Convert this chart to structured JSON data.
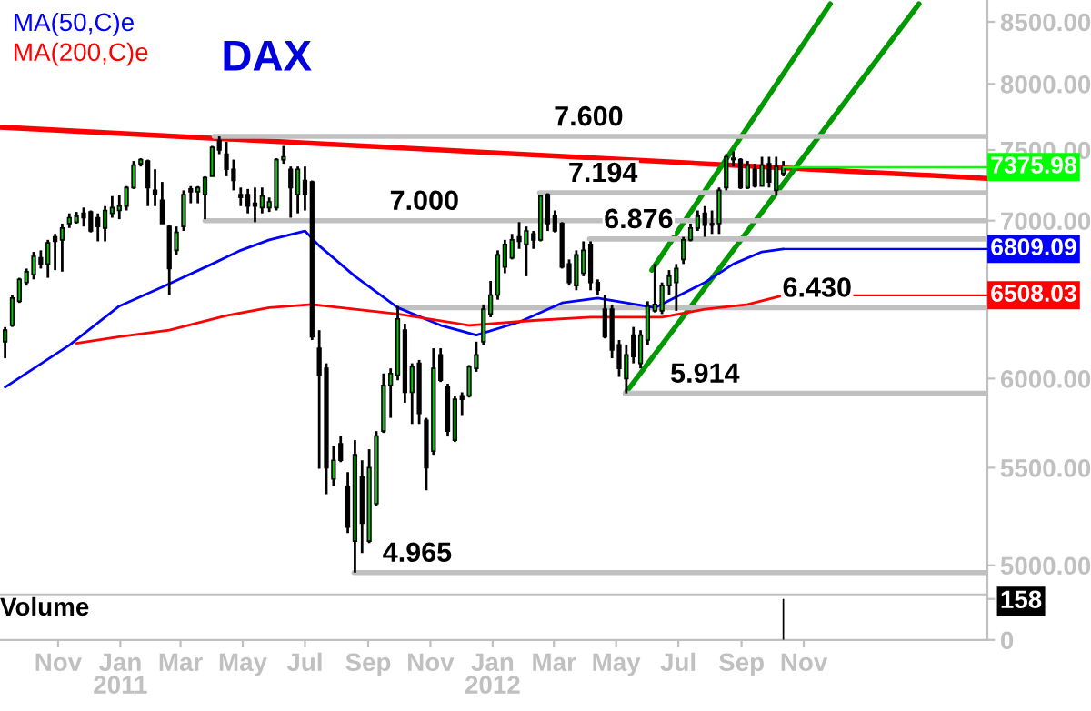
{
  "chart_data": [
    {
      "type": "candlestick",
      "title": "DAX",
      "log": true,
      "legend": "top left",
      "tick_labels": "y",
      "xlim": [
        "2010-09-05",
        "2013-04-30"
      ],
      "ylim": [
        4860,
        8683
      ],
      "yticks": [
        {
          "value": 5000,
          "label": "5000.00"
        },
        {
          "value": 5500,
          "label": "5500.00"
        },
        {
          "value": 6000,
          "label": "6000.00"
        },
        {
          "value": 7000,
          "label": "7000.00"
        },
        {
          "value": 7500,
          "label": "7500.00"
        },
        {
          "value": 8000,
          "label": "8000.00"
        },
        {
          "value": 8500,
          "label": "8500.00"
        }
      ],
      "x": [
        "2010-09-10",
        "2010-09-17",
        "2010-09-24",
        "2010-10-01",
        "2010-10-08",
        "2010-10-15",
        "2010-10-22",
        "2010-10-29",
        "2010-11-05",
        "2010-11-12",
        "2010-11-19",
        "2010-11-26",
        "2010-12-03",
        "2010-12-10",
        "2010-12-17",
        "2010-12-24",
        "2010-12-31",
        "2011-01-07",
        "2011-01-14",
        "2011-01-21",
        "2011-01-28",
        "2011-02-04",
        "2011-02-11",
        "2011-02-18",
        "2011-02-25",
        "2011-03-04",
        "2011-03-11",
        "2011-03-18",
        "2011-03-25",
        "2011-04-01",
        "2011-04-08",
        "2011-04-15",
        "2011-04-22",
        "2011-04-29",
        "2011-05-06",
        "2011-05-13",
        "2011-05-20",
        "2011-05-27",
        "2011-06-03",
        "2011-06-10",
        "2011-06-17",
        "2011-06-24",
        "2011-07-01",
        "2011-07-08",
        "2011-07-15",
        "2011-07-22",
        "2011-07-29",
        "2011-08-05",
        "2011-08-12",
        "2011-08-19",
        "2011-08-26",
        "2011-09-02",
        "2011-09-09",
        "2011-09-16",
        "2011-09-23",
        "2011-09-30",
        "2011-10-07",
        "2011-10-14",
        "2011-10-21",
        "2011-10-28",
        "2011-11-04",
        "2011-11-11",
        "2011-11-18",
        "2011-11-25",
        "2011-12-02",
        "2011-12-09",
        "2011-12-16",
        "2011-12-23",
        "2011-12-30",
        "2012-01-06",
        "2012-01-13",
        "2012-01-20",
        "2012-01-27",
        "2012-02-03",
        "2012-02-10",
        "2012-02-17",
        "2012-02-24",
        "2012-03-02",
        "2012-03-09",
        "2012-03-16",
        "2012-03-23",
        "2012-03-30",
        "2012-04-06",
        "2012-04-13",
        "2012-04-20",
        "2012-04-27",
        "2012-05-04",
        "2012-05-11",
        "2012-05-18",
        "2012-05-25",
        "2012-06-01",
        "2012-06-08",
        "2012-06-15",
        "2012-06-22",
        "2012-06-29",
        "2012-07-06",
        "2012-07-13",
        "2012-07-20",
        "2012-07-27",
        "2012-08-03",
        "2012-08-10",
        "2012-08-17",
        "2012-08-24",
        "2012-08-31",
        "2012-09-07",
        "2012-09-14",
        "2012-09-21",
        "2012-09-28",
        "2012-10-05",
        "2012-10-12"
      ],
      "ohlc": [
        [
          6220,
          6309,
          6120,
          6290
        ],
        [
          6320,
          6510,
          6310,
          6490
        ],
        [
          6470,
          6620,
          6460,
          6610
        ],
        [
          6590,
          6680,
          6570,
          6660
        ],
        [
          6640,
          6790,
          6610,
          6760
        ],
        [
          6750,
          6800,
          6680,
          6710
        ],
        [
          6710,
          6870,
          6620,
          6850
        ],
        [
          6890,
          6910,
          6670,
          6860
        ],
        [
          6870,
          6980,
          6660,
          6950
        ],
        [
          6980,
          7050,
          6950,
          7020
        ],
        [
          6990,
          7060,
          6980,
          7030
        ],
        [
          7050,
          7090,
          6960,
          7020
        ],
        [
          7060,
          7070,
          6920,
          6930
        ],
        [
          7020,
          7050,
          6860,
          6960
        ],
        [
          6950,
          7100,
          6860,
          7070
        ],
        [
          7050,
          7170,
          7020,
          7090
        ],
        [
          7070,
          7180,
          7010,
          7100
        ],
        [
          7100,
          7240,
          7070,
          7230
        ],
        [
          7230,
          7420,
          7220,
          7390
        ],
        [
          7400,
          7440,
          7380,
          7430
        ],
        [
          7420,
          7430,
          7100,
          7230
        ],
        [
          7210,
          7360,
          7100,
          7180
        ],
        [
          7140,
          7270,
          6980,
          6980
        ],
        [
          6960,
          6970,
          6510,
          6680
        ],
        [
          6800,
          6960,
          6770,
          6920
        ],
        [
          6960,
          7210,
          6930,
          7180
        ],
        [
          7220,
          7240,
          7120,
          7200
        ],
        [
          7200,
          7240,
          7120,
          7230
        ],
        [
          7180,
          7310,
          7010,
          7300
        ],
        [
          7310,
          7530,
          7310,
          7520
        ],
        [
          7570,
          7600,
          7470,
          7500
        ],
        [
          7470,
          7560,
          7310,
          7360
        ],
        [
          7360,
          7430,
          7210,
          7280
        ],
        [
          7180,
          7230,
          7100,
          7160
        ],
        [
          7180,
          7220,
          7050,
          7100
        ],
        [
          7120,
          7230,
          6990,
          7100
        ],
        [
          7090,
          7230,
          7050,
          7170
        ],
        [
          7090,
          7160,
          7060,
          7130
        ],
        [
          7090,
          7440,
          7070,
          7430
        ],
        [
          7430,
          7530,
          7400,
          7450
        ],
        [
          7360,
          7380,
          7020,
          7230
        ],
        [
          7180,
          7380,
          7050,
          7360
        ],
        [
          7280,
          7380,
          7070,
          7180
        ],
        [
          7270,
          7280,
          6230,
          6250
        ],
        [
          6180,
          6290,
          5495,
          6020
        ],
        [
          6060,
          6090,
          5360,
          5500
        ],
        [
          5440,
          5620,
          5400,
          5540
        ],
        [
          5630,
          5673,
          5530,
          5540
        ],
        [
          5400,
          5476,
          5160,
          5190
        ],
        [
          5120,
          5650,
          4965,
          5570
        ],
        [
          5450,
          5540,
          5060,
          5210
        ],
        [
          5120,
          5600,
          5110,
          5500
        ],
        [
          5310,
          5700,
          5300,
          5673
        ],
        [
          5700,
          6030,
          5690,
          5960
        ],
        [
          5960,
          6060,
          5774,
          6030
        ],
        [
          6020,
          6440,
          5990,
          6360
        ],
        [
          6290,
          6330,
          5860,
          5920
        ],
        [
          5920,
          6090,
          5740,
          6070
        ],
        [
          6090,
          6110,
          5740,
          5800
        ],
        [
          5760,
          5774,
          5380,
          5500
        ],
        [
          5590,
          6180,
          5570,
          6060
        ],
        [
          6140,
          6180,
          5980,
          5990
        ],
        [
          5950,
          5970,
          5670,
          5700
        ],
        [
          5650,
          5900,
          5640,
          5880
        ],
        [
          5900,
          5920,
          5790,
          5880
        ],
        [
          5900,
          6080,
          5890,
          6070
        ],
        [
          6060,
          6220,
          6040,
          6140
        ],
        [
          6220,
          6450,
          6200,
          6420
        ],
        [
          6390,
          6600,
          6370,
          6510
        ],
        [
          6510,
          6800,
          6480,
          6770
        ],
        [
          6690,
          6870,
          6650,
          6840
        ],
        [
          6750,
          6910,
          6740,
          6870
        ],
        [
          6890,
          6990,
          6810,
          6860
        ],
        [
          6840,
          6960,
          6630,
          6930
        ],
        [
          6910,
          6930,
          6810,
          6870
        ],
        [
          6870,
          7180,
          6860,
          7170
        ],
        [
          7180,
          7190,
          6930,
          6980
        ],
        [
          7030,
          7070,
          6920,
          6930
        ],
        [
          6980,
          6990,
          6680,
          6690
        ],
        [
          6710,
          6740,
          6570,
          6590
        ],
        [
          6570,
          6800,
          6540,
          6770
        ],
        [
          6650,
          6860,
          6630,
          6800
        ],
        [
          6840,
          6860,
          6540,
          6590
        ],
        [
          6590,
          6610,
          6510,
          6540
        ],
        [
          6420,
          6510,
          6240,
          6250
        ],
        [
          6420,
          6450,
          6120,
          6170
        ],
        [
          6200,
          6230,
          6010,
          6060
        ],
        [
          6000,
          6200,
          5914,
          6140
        ],
        [
          6260,
          6310,
          6090,
          6130
        ],
        [
          6090,
          6290,
          6060,
          6260
        ],
        [
          6230,
          6470,
          6200,
          6440
        ],
        [
          6410,
          6710,
          6400,
          6450
        ],
        [
          6410,
          6590,
          6390,
          6570
        ],
        [
          6570,
          6670,
          6510,
          6630
        ],
        [
          6590,
          6710,
          6410,
          6680
        ],
        [
          6740,
          6890,
          6710,
          6870
        ],
        [
          6870,
          6980,
          6860,
          6950
        ],
        [
          6950,
          7070,
          6930,
          7030
        ],
        [
          7050,
          7100,
          6890,
          6970
        ],
        [
          6980,
          7070,
          6910,
          6970
        ],
        [
          6980,
          7230,
          6910,
          7210
        ],
        [
          7230,
          7470,
          7210,
          7450
        ],
        [
          7440,
          7490,
          7380,
          7430
        ],
        [
          7430,
          7440,
          7220,
          7230
        ],
        [
          7230,
          7420,
          7220,
          7390
        ],
        [
          7360,
          7400,
          7230,
          7240
        ],
        [
          7240,
          7450,
          7240,
          7390
        ],
        [
          7400,
          7450,
          7230,
          7270
        ],
        [
          7210,
          7450,
          7180,
          7380
        ],
        [
          7330,
          7420,
          7310,
          7375.98
        ]
      ],
      "series": [
        {
          "name": "MA(50,C)e",
          "type": "line",
          "color": "#0000ff",
          "x": [
            "2010-09-10",
            "2010-11-12",
            "2010-12-31",
            "2011-02-11",
            "2011-04-01",
            "2011-04-29",
            "2011-05-27",
            "2011-07-01",
            "2011-07-15",
            "2011-08-19",
            "2011-09-30",
            "2011-11-11",
            "2011-12-16",
            "2012-01-27",
            "2012-03-09",
            "2012-04-13",
            "2012-06-08",
            "2012-07-27",
            "2012-08-24",
            "2012-09-21",
            "2012-10-12"
          ],
          "values": [
            5950,
            6199,
            6440,
            6560,
            6710,
            6800,
            6870,
            6930,
            6830,
            6630,
            6430,
            6320,
            6260,
            6340,
            6460,
            6490,
            6430,
            6590,
            6710,
            6790,
            6809.09
          ]
        },
        {
          "name": "MA(200,C)e",
          "type": "line",
          "color": "#ff0000",
          "x": [
            "2010-11-19",
            "2010-12-31",
            "2011-02-18",
            "2011-04-15",
            "2011-05-27",
            "2011-07-08",
            "2011-08-05",
            "2011-09-30",
            "2011-12-09",
            "2012-02-10",
            "2012-04-06",
            "2012-06-15",
            "2012-07-27",
            "2012-09-07",
            "2012-10-12"
          ],
          "values": [
            6210,
            6250,
            6290,
            6380,
            6430,
            6450,
            6430,
            6390,
            6320,
            6350,
            6370,
            6370,
            6420,
            6450,
            6508.03
          ]
        },
        {
          "type": "line",
          "color": "#ff0000",
          "x": [
            "2010-09-05",
            "2013-04-30"
          ],
          "values": [
            7669,
            7295
          ]
        },
        {
          "type": "line",
          "color": "#009900",
          "x": [
            "2012-06-05",
            "2012-11-27"
          ],
          "values": [
            6670,
            8650
          ]
        },
        {
          "type": "line",
          "color": "#009900",
          "x": [
            "2012-05-10",
            "2013-02-22"
          ],
          "values": [
            5914,
            8650
          ]
        },
        {
          "type": "line",
          "color": "#c0c0c0",
          "x": [
            "2011-04-03",
            "2013-04-30"
          ],
          "values": [
            7600,
            7600
          ]
        },
        {
          "type": "line",
          "color": "#c0c0c0",
          "x": [
            "2012-02-16",
            "2013-04-30"
          ],
          "values": [
            7194,
            7194
          ]
        },
        {
          "type": "line",
          "color": "#c0c0c0",
          "x": [
            "2011-03-25",
            "2013-04-30"
          ],
          "values": [
            7000,
            7000
          ]
        },
        {
          "type": "line",
          "color": "#c0c0c0",
          "x": [
            "2012-04-05",
            "2013-04-30"
          ],
          "values": [
            6876,
            6876
          ]
        },
        {
          "type": "line",
          "color": "#c0c0c0",
          "x": [
            "2011-09-29",
            "2013-04-30"
          ],
          "values": [
            6430,
            6430
          ]
        },
        {
          "type": "line",
          "color": "#c0c0c0",
          "x": [
            "2012-05-10",
            "2013-04-30"
          ],
          "values": [
            5914,
            5914
          ]
        },
        {
          "type": "line",
          "color": "#c0c0c0",
          "x": [
            "2011-08-18",
            "2013-04-30"
          ],
          "values": [
            4965,
            4965
          ]
        }
      ],
      "annotations": [
        {
          "text": "7.600",
          "x": "2012-03-01",
          "y": 7600
        },
        {
          "text": "7.194",
          "x": "2012-03-15",
          "y": 7194
        },
        {
          "text": "7.000",
          "x": "2011-09-22",
          "y": 7000
        },
        {
          "text": "6.876",
          "x": "2012-04-19",
          "y": 6876
        },
        {
          "text": "6.430",
          "x": "2012-10-11",
          "y": 6430
        },
        {
          "text": "5.914",
          "x": "2012-06-23",
          "y": 5914
        },
        {
          "text": "4.965",
          "x": "2011-09-15",
          "y": 4965
        },
        {
          "text": "7375.98",
          "x": "2012-10-12",
          "y": 7375.98
        },
        {
          "text": "6809.09",
          "x": "2012-10-12",
          "y": 6809.09
        },
        {
          "text": "6508.03",
          "x": "2012-10-12",
          "y": 6508.03
        }
      ]
    },
    {
      "type": "bar",
      "title": "Volume",
      "xlim": [
        "2010-09-05",
        "2013-04-30"
      ],
      "ylim": [
        0,
        170
      ],
      "yticks": [
        0,
        158
      ],
      "xticks": [
        {
          "value": "2010-11-01",
          "label": "Nov"
        },
        {
          "value": "2011-01-01",
          "label": "Jan\n2011"
        },
        {
          "value": "2011-03-01",
          "label": "Mar"
        },
        {
          "value": "2011-05-01",
          "label": "May"
        },
        {
          "value": "2011-07-01",
          "label": "Jul"
        },
        {
          "value": "2011-09-01",
          "label": "Sep"
        },
        {
          "value": "2011-11-01",
          "label": "Nov"
        },
        {
          "value": "2012-01-01",
          "label": "Jan\n2012"
        },
        {
          "value": "2012-03-01",
          "label": "Mar"
        },
        {
          "value": "2012-05-01",
          "label": "May"
        },
        {
          "value": "2012-07-01",
          "label": "Jul"
        },
        {
          "value": "2012-09-01",
          "label": "Sep"
        },
        {
          "value": "2012-11-01",
          "label": "Nov"
        }
      ],
      "x": [
        "2012-10-12"
      ],
      "values": [
        158
      ],
      "color": "#000000"
    }
  ]
}
